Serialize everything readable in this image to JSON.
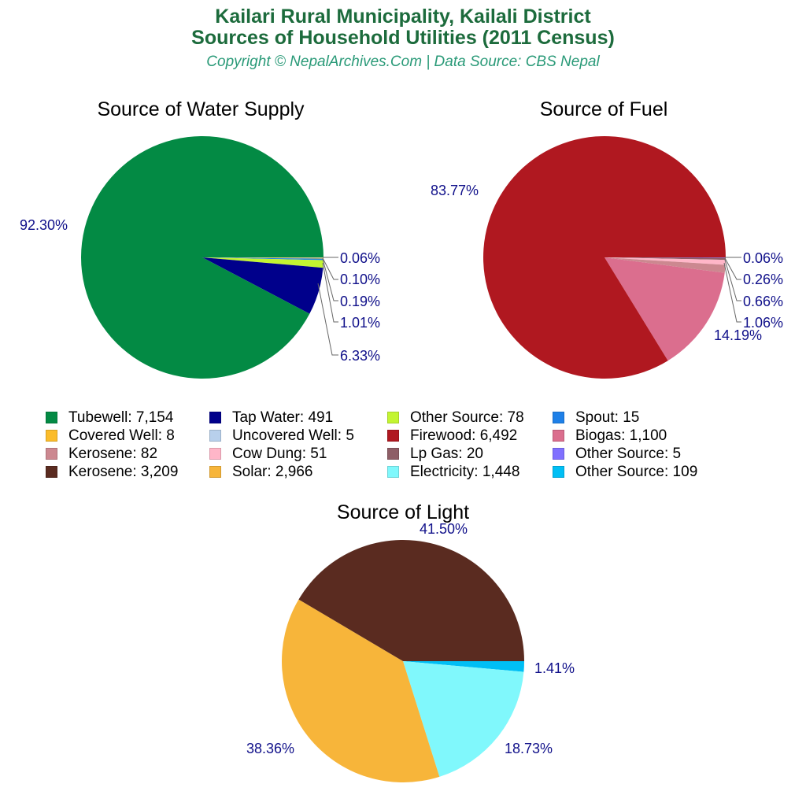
{
  "header": {
    "title_line1": "Kailari Rural Municipality, Kailali District",
    "title_line2": "Sources of Household Utilities (2011 Census)",
    "subtitle": "Copyright © NepalArchives.Com | Data Source: CBS Nepal"
  },
  "colors": {
    "title": "#1c6b3c",
    "subtitle": "#2a9a78",
    "labels": "#10108a"
  },
  "legend": [
    {
      "label": "Tubewell: 7,154",
      "color": "#038a44"
    },
    {
      "label": "Tap Water: 491",
      "color": "#00008b"
    },
    {
      "label": "Other Source: 78",
      "color": "#c3f531"
    },
    {
      "label": "Spout: 15",
      "color": "#1e80e8"
    },
    {
      "label": "Covered Well: 8",
      "color": "#fbbc2a"
    },
    {
      "label": "Uncovered Well: 5",
      "color": "#b8d0ec"
    },
    {
      "label": "Firewood: 6,492",
      "color": "#b01820"
    },
    {
      "label": "Biogas: 1,100",
      "color": "#db6e8e"
    },
    {
      "label": "Kerosene: 82",
      "color": "#cc8890"
    },
    {
      "label": "Cow Dung: 51",
      "color": "#ffb6c8"
    },
    {
      "label": "Lp Gas: 20",
      "color": "#8e5e66"
    },
    {
      "label": "Other Source: 5",
      "color": "#8070ff"
    },
    {
      "label": "Kerosene: 3,209",
      "color": "#5a2b20"
    },
    {
      "label": "Solar: 2,966",
      "color": "#f7b53a"
    },
    {
      "label": "Electricity: 1,448",
      "color": "#80f8fc"
    },
    {
      "label": "Other Source: 109",
      "color": "#00bff5"
    }
  ],
  "chart_data": [
    {
      "type": "pie",
      "title": "Source of Water Supply",
      "categories": [
        "Uncovered Well",
        "Covered Well",
        "Spout",
        "Other Source",
        "Tap Water",
        "Tubewell"
      ],
      "values": [
        5,
        8,
        15,
        78,
        491,
        7154
      ],
      "percent_labels": [
        "0.06%",
        "0.10%",
        "0.19%",
        "1.01%",
        "6.33%",
        "92.30%"
      ],
      "colors": [
        "#b8d0ec",
        "#fbbc2a",
        "#1e80e8",
        "#c3f531",
        "#00008b",
        "#038a44"
      ]
    },
    {
      "type": "pie",
      "title": "Source of Fuel",
      "categories": [
        "Other Source",
        "Lp Gas",
        "Cow Dung",
        "Kerosene",
        "Biogas",
        "Firewood"
      ],
      "values": [
        5,
        20,
        51,
        82,
        1100,
        6492
      ],
      "percent_labels": [
        "0.06%",
        "0.26%",
        "0.66%",
        "1.06%",
        "14.19%",
        "83.77%"
      ],
      "colors": [
        "#8070ff",
        "#8e5e66",
        "#ffb6c8",
        "#cc8890",
        "#db6e8e",
        "#b01820"
      ]
    },
    {
      "type": "pie",
      "title": "Source of Light",
      "categories": [
        "Other Source",
        "Electricity",
        "Solar",
        "Kerosene"
      ],
      "values": [
        109,
        1448,
        2966,
        3209
      ],
      "percent_labels": [
        "1.41%",
        "18.73%",
        "38.36%",
        "41.50%"
      ],
      "colors": [
        "#00bff5",
        "#80f8fc",
        "#f7b53a",
        "#5a2b20"
      ]
    }
  ]
}
